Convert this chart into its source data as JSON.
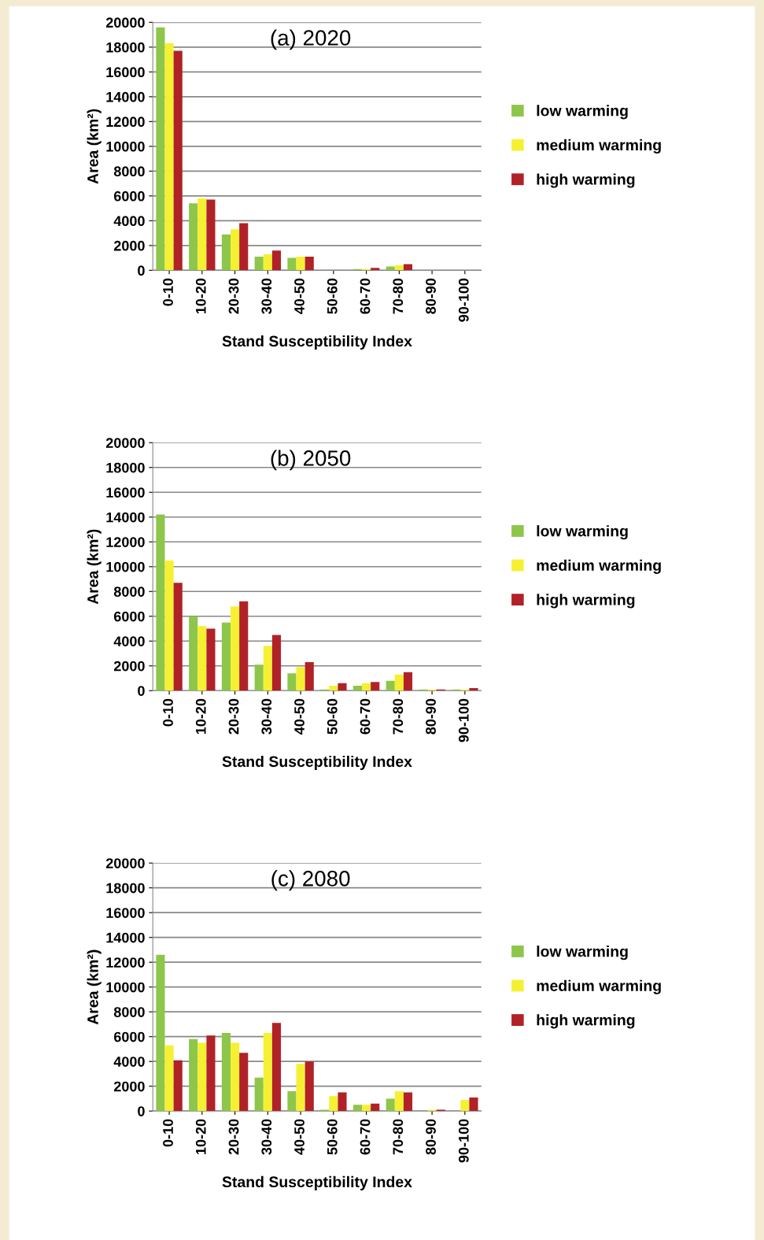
{
  "chart_data": [
    {
      "type": "bar",
      "title": "(a) 2020",
      "xlabel": "Stand Susceptibility Index",
      "ylabel": "Area (km²)",
      "categories": [
        "0-10",
        "10-20",
        "20-30",
        "30-40",
        "40-50",
        "50-60",
        "60-70",
        "70-80",
        "80-90",
        "90-100"
      ],
      "series": [
        {
          "name": "low warming",
          "color": "#8dc64a",
          "values": [
            19600,
            5400,
            2900,
            1100,
            1000,
            0,
            100,
            300,
            0,
            0
          ]
        },
        {
          "name": "medium warming",
          "color": "#f6f033",
          "values": [
            18300,
            5800,
            3300,
            1300,
            1100,
            0,
            100,
            400,
            0,
            0
          ]
        },
        {
          "name": "high warming",
          "color": "#b02227",
          "values": [
            17700,
            5700,
            3800,
            1600,
            1100,
            0,
            200,
            500,
            0,
            0
          ]
        }
      ],
      "ylim": [
        0,
        20000
      ],
      "yticks": [
        0,
        2000,
        4000,
        6000,
        8000,
        10000,
        12000,
        14000,
        16000,
        18000,
        20000
      ],
      "grid": "y",
      "legend": "right"
    },
    {
      "type": "bar",
      "title": "(b) 2050",
      "xlabel": "Stand Susceptibility Index",
      "ylabel": "Area (km²)",
      "categories": [
        "0-10",
        "10-20",
        "20-30",
        "30-40",
        "40-50",
        "50-60",
        "60-70",
        "70-80",
        "80-90",
        "90-100"
      ],
      "series": [
        {
          "name": "low warming",
          "color": "#8dc64a",
          "values": [
            14200,
            6000,
            5500,
            2100,
            1400,
            100,
            400,
            800,
            100,
            100
          ]
        },
        {
          "name": "medium warming",
          "color": "#f6f033",
          "values": [
            10500,
            5200,
            6800,
            3600,
            1900,
            400,
            600,
            1300,
            100,
            100
          ]
        },
        {
          "name": "high warming",
          "color": "#b02227",
          "values": [
            8700,
            5000,
            7200,
            4500,
            2300,
            600,
            700,
            1500,
            100,
            200
          ]
        }
      ],
      "ylim": [
        0,
        20000
      ],
      "yticks": [
        0,
        2000,
        4000,
        6000,
        8000,
        10000,
        12000,
        14000,
        16000,
        18000,
        20000
      ],
      "grid": "y",
      "legend": "right"
    },
    {
      "type": "bar",
      "title": "(c) 2080",
      "xlabel": "Stand Susceptibility Index",
      "ylabel": "Area (km²)",
      "categories": [
        "0-10",
        "10-20",
        "20-30",
        "30-40",
        "40-50",
        "50-60",
        "60-70",
        "70-80",
        "80-90",
        "90-100"
      ],
      "series": [
        {
          "name": "low warming",
          "color": "#8dc64a",
          "values": [
            12600,
            5800,
            6300,
            2700,
            1600,
            100,
            500,
            1000,
            0,
            0
          ]
        },
        {
          "name": "medium warming",
          "color": "#f6f033",
          "values": [
            5300,
            5500,
            5500,
            6300,
            3800,
            1200,
            500,
            1600,
            100,
            900
          ]
        },
        {
          "name": "high warming",
          "color": "#b02227",
          "values": [
            4100,
            6100,
            4700,
            7100,
            4000,
            1500,
            600,
            1500,
            100,
            1100
          ]
        }
      ],
      "ylim": [
        0,
        20000
      ],
      "yticks": [
        0,
        2000,
        4000,
        6000,
        8000,
        10000,
        12000,
        14000,
        16000,
        18000,
        20000
      ],
      "grid": "y",
      "legend": "right"
    }
  ]
}
